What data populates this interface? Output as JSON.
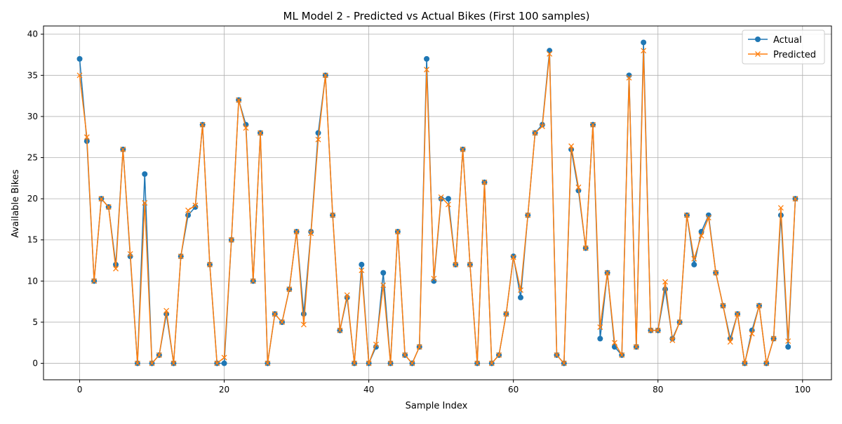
{
  "chart_data": {
    "type": "line",
    "title": "ML Model 2 - Predicted vs Actual Bikes (First 100 samples)",
    "xlabel": "Sample Index",
    "ylabel": "Available Bikes",
    "xlim": [
      -5,
      104
    ],
    "ylim": [
      -2,
      41
    ],
    "xticks": [
      0,
      20,
      40,
      60,
      80,
      100
    ],
    "yticks": [
      0,
      5,
      10,
      15,
      20,
      25,
      30,
      35,
      40
    ],
    "grid": true,
    "legend": "top-right",
    "series": [
      {
        "name": "Actual",
        "color": "#1f77b4",
        "marker": "circle",
        "values": [
          37,
          27,
          10,
          20,
          19,
          12,
          26,
          13,
          0,
          23,
          0,
          1,
          6,
          0,
          13,
          18,
          19,
          29,
          12,
          0,
          0,
          15,
          32,
          29,
          10,
          28,
          0,
          6,
          5,
          9,
          16,
          6,
          16,
          28,
          35,
          18,
          4,
          8,
          0,
          12,
          0,
          2,
          11,
          0,
          16,
          1,
          0,
          2,
          37,
          10,
          20,
          20,
          12,
          26,
          12,
          0,
          22,
          0,
          1,
          6,
          13,
          8,
          18,
          28,
          29,
          38,
          1,
          0,
          26,
          21,
          14,
          29,
          3,
          11,
          2,
          1,
          35,
          2,
          39,
          4,
          4,
          9,
          3,
          5,
          18,
          12,
          16,
          18,
          11,
          7,
          3,
          6,
          0,
          4,
          7,
          0,
          3,
          18,
          2,
          20
        ]
      },
      {
        "name": "Predicted",
        "color": "#ff7f0e",
        "marker": "x",
        "values": [
          35,
          27.5,
          10,
          20,
          19,
          11.5,
          26,
          13.3,
          0,
          19.5,
          0,
          1,
          6.4,
          0,
          13,
          18.6,
          19.2,
          29,
          12,
          0,
          0.7,
          15,
          32,
          28.6,
          10,
          28,
          0,
          6,
          5,
          9,
          16,
          4.7,
          15.8,
          27.2,
          35,
          18,
          4,
          8.3,
          0,
          11.3,
          0,
          2.3,
          9.5,
          0,
          16,
          1,
          0,
          2,
          35.7,
          10.3,
          20.2,
          19.3,
          12,
          26,
          12,
          0,
          22,
          0,
          1,
          6,
          12.9,
          8.9,
          18,
          28,
          28.8,
          37.6,
          1,
          0,
          26.4,
          21.4,
          14,
          29,
          4.4,
          11,
          2.5,
          1,
          34.7,
          2,
          38,
          4,
          4,
          9.9,
          2.8,
          5,
          18,
          12.7,
          15.5,
          17.7,
          11,
          7,
          2.6,
          6,
          0,
          3.6,
          7,
          0,
          3,
          18.9,
          2.7,
          20
        ]
      }
    ]
  }
}
